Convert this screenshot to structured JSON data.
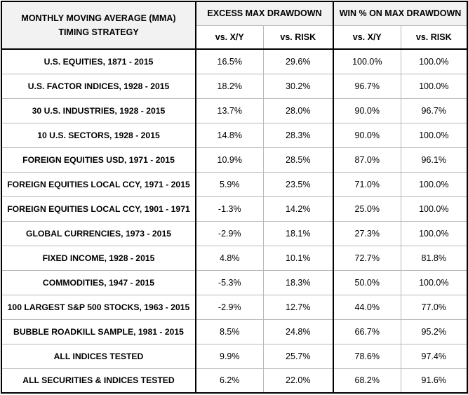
{
  "header": {
    "strategy_line1": "MONTHLY MOVING AVERAGE (MMA)",
    "strategy_line2": "TIMING STRATEGY",
    "group1": "EXCESS MAX DRAWDOWN",
    "group2": "WIN % ON MAX DRAWDOWN",
    "g1_col1": "vs. X/Y",
    "g1_col2": "vs. RISK",
    "g2_col1": "vs. X/Y",
    "g2_col2": "vs. RISK"
  },
  "rows": [
    {
      "label": "U.S. EQUITIES, 1871 - 2015",
      "v1": "16.5%",
      "v2": "29.6%",
      "v3": "100.0%",
      "v4": "100.0%"
    },
    {
      "label": "U.S. FACTOR INDICES, 1928 - 2015",
      "v1": "18.2%",
      "v2": "30.2%",
      "v3": "96.7%",
      "v4": "100.0%"
    },
    {
      "label": "30 U.S. INDUSTRIES, 1928 - 2015",
      "v1": "13.7%",
      "v2": "28.0%",
      "v3": "90.0%",
      "v4": "96.7%"
    },
    {
      "label": "10 U.S. SECTORS, 1928 - 2015",
      "v1": "14.8%",
      "v2": "28.3%",
      "v3": "90.0%",
      "v4": "100.0%"
    },
    {
      "label": "FOREIGN EQUITIES USD, 1971 - 2015",
      "v1": "10.9%",
      "v2": "28.5%",
      "v3": "87.0%",
      "v4": "96.1%"
    },
    {
      "label": "FOREIGN EQUITIES LOCAL CCY, 1971 - 2015",
      "v1": "5.9%",
      "v2": "23.5%",
      "v3": "71.0%",
      "v4": "100.0%"
    },
    {
      "label": "FOREIGN EQUITIES LOCAL CCY, 1901 - 1971",
      "v1": "-1.3%",
      "v2": "14.2%",
      "v3": "25.0%",
      "v4": "100.0%"
    },
    {
      "label": "GLOBAL CURRENCIES, 1973 - 2015",
      "v1": "-2.9%",
      "v2": "18.1%",
      "v3": "27.3%",
      "v4": "100.0%"
    },
    {
      "label": "FIXED INCOME, 1928 - 2015",
      "v1": "4.8%",
      "v2": "10.1%",
      "v3": "72.7%",
      "v4": "81.8%"
    },
    {
      "label": "COMMODITIES, 1947 - 2015",
      "v1": "-5.3%",
      "v2": "18.3%",
      "v3": "50.0%",
      "v4": "100.0%"
    },
    {
      "label": "100 LARGEST S&P 500 STOCKS, 1963 - 2015",
      "v1": "-2.9%",
      "v2": "12.7%",
      "v3": "44.0%",
      "v4": "77.0%"
    },
    {
      "label": "BUBBLE ROADKILL SAMPLE, 1981 - 2015",
      "v1": "8.5%",
      "v2": "24.8%",
      "v3": "66.7%",
      "v4": "95.2%"
    },
    {
      "label": "ALL INDICES TESTED",
      "v1": "9.9%",
      "v2": "25.7%",
      "v3": "78.6%",
      "v4": "97.4%"
    },
    {
      "label": "ALL SECURITIES & INDICES TESTED",
      "v1": "6.2%",
      "v2": "22.0%",
      "v3": "68.2%",
      "v4": "91.6%"
    }
  ]
}
